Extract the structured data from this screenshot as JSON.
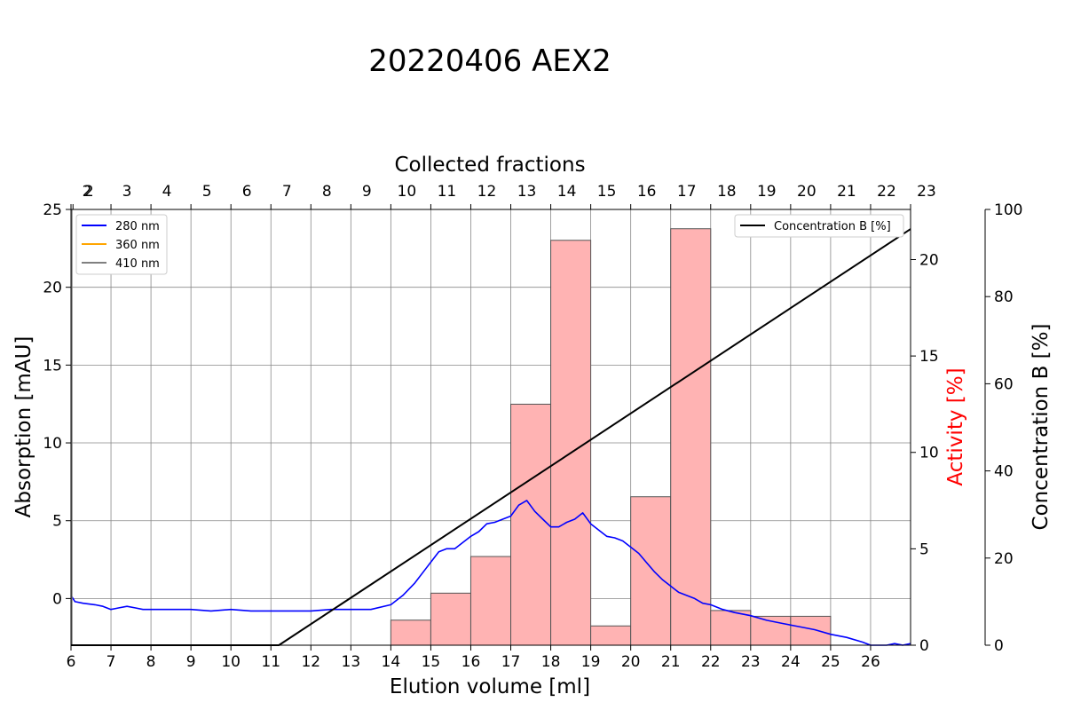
{
  "chart_data": {
    "type": "line",
    "title": "20220406 AEX2",
    "xlabel": "Elution volume [ml]",
    "ylabel": "Absorption [mAU]",
    "y2label": "Activity [%]",
    "y3label": "Concentration B [%]",
    "toplabel": "Collected fractions",
    "xlim": [
      6.0,
      27.0
    ],
    "ylim": [
      -3.0,
      25.0
    ],
    "y2lim": [
      0,
      22.6
    ],
    "y3lim": [
      0,
      100
    ],
    "x_ticks": [
      "6",
      "7",
      "8",
      "9",
      "10",
      "11",
      "12",
      "13",
      "14",
      "15",
      "16",
      "17",
      "18",
      "19",
      "20",
      "21",
      "22",
      "23",
      "24",
      "25",
      "26"
    ],
    "y_ticks": [
      "0",
      "5",
      "10",
      "15",
      "20",
      "25"
    ],
    "y2_ticks": [
      "0",
      "5",
      "10",
      "15",
      "20"
    ],
    "y3_ticks": [
      "0",
      "20",
      "40",
      "60",
      "80",
      "100"
    ],
    "fractions": {
      "labels": [
        "2",
        "2",
        "3",
        "4",
        "5",
        "6",
        "7",
        "8",
        "9",
        "10",
        "11",
        "12",
        "13",
        "14",
        "15",
        "16",
        "17",
        "18",
        "19",
        "20",
        "21",
        "22",
        "23"
      ],
      "boundaries": [
        6.0,
        6.05,
        7.0,
        8.0,
        9.0,
        10.0,
        11.0,
        12.0,
        13.0,
        14.0,
        15.0,
        16.0,
        17.0,
        18.0,
        19.0,
        20.0,
        21.0,
        22.0,
        23.0,
        24.0,
        25.0,
        26.0,
        27.0
      ]
    },
    "grid": true,
    "series": [
      {
        "name": "280 nm",
        "color": "#0000ff",
        "x": [
          6.0,
          6.1,
          6.3,
          6.6,
          6.8,
          7.0,
          7.2,
          7.4,
          7.6,
          7.8,
          8.0,
          8.5,
          9.0,
          9.5,
          10.0,
          10.5,
          11.0,
          11.5,
          12.0,
          12.5,
          13.0,
          13.5,
          14.0,
          14.3,
          14.6,
          14.9,
          15.2,
          15.4,
          15.6,
          15.8,
          16.0,
          16.2,
          16.4,
          16.6,
          16.8,
          17.0,
          17.2,
          17.4,
          17.6,
          17.8,
          18.0,
          18.2,
          18.4,
          18.6,
          18.8,
          19.0,
          19.2,
          19.4,
          19.6,
          19.8,
          20.0,
          20.2,
          20.4,
          20.6,
          20.8,
          21.0,
          21.2,
          21.4,
          21.6,
          21.8,
          22.0,
          22.3,
          22.6,
          23.0,
          23.4,
          23.8,
          24.2,
          24.6,
          25.0,
          25.4,
          25.8,
          26.0,
          26.2,
          26.4,
          26.6,
          26.8,
          27.0
        ],
        "y": [
          0.2,
          -0.2,
          -0.3,
          -0.4,
          -0.5,
          -0.7,
          -0.6,
          -0.5,
          -0.6,
          -0.7,
          -0.7,
          -0.7,
          -0.7,
          -0.8,
          -0.7,
          -0.8,
          -0.8,
          -0.8,
          -0.8,
          -0.7,
          -0.7,
          -0.7,
          -0.4,
          0.2,
          1.0,
          2.0,
          3.0,
          3.2,
          3.2,
          3.6,
          4.0,
          4.3,
          4.8,
          4.9,
          5.1,
          5.3,
          6.0,
          6.3,
          5.6,
          5.1,
          4.6,
          4.6,
          4.9,
          5.1,
          5.5,
          4.8,
          4.4,
          4.0,
          3.9,
          3.7,
          3.3,
          2.9,
          2.3,
          1.7,
          1.2,
          0.8,
          0.4,
          0.2,
          0.0,
          -0.3,
          -0.4,
          -0.7,
          -0.9,
          -1.1,
          -1.4,
          -1.6,
          -1.8,
          -2.0,
          -2.3,
          -2.5,
          -2.8,
          -3.0,
          -3.0,
          -3.0,
          -2.9,
          -3.0,
          -2.9
        ]
      },
      {
        "name": "360 nm",
        "color": "#ffa500",
        "x": [
          6.01,
          6.01
        ],
        "y": [
          -3.0,
          25.0
        ]
      },
      {
        "name": "410 nm",
        "color": "#808080",
        "x": [
          6.02,
          6.02
        ],
        "y": [
          -3.0,
          25.0
        ]
      },
      {
        "name": "Concentration B [%]",
        "color": "#000000",
        "axis": "y3",
        "x": [
          6.0,
          11.2,
          27.0
        ],
        "y": [
          0,
          0,
          95.5
        ]
      }
    ],
    "activity_bars": {
      "axis": "y2",
      "color": "#ff000055",
      "edge": "#000000",
      "x0": [
        14,
        15,
        16,
        17,
        18,
        19,
        20,
        21,
        22,
        23,
        24
      ],
      "x1": [
        15,
        16,
        17,
        18,
        19,
        20,
        21,
        22,
        23,
        24,
        25
      ],
      "values": [
        1.3,
        2.7,
        4.6,
        12.5,
        21.0,
        1.0,
        7.7,
        21.6,
        1.8,
        1.5,
        1.5
      ]
    },
    "legend_left": [
      "280 nm",
      "360 nm",
      "410 nm"
    ],
    "legend_right": [
      "Concentration B [%]"
    ],
    "legend_left_position": "top-left",
    "legend_right_position": "top-right"
  }
}
